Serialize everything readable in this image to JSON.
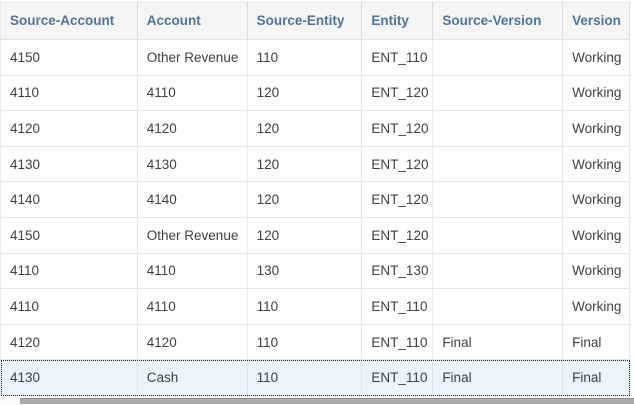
{
  "table": {
    "columns": [
      "Source-Account",
      "Account",
      "Source-Entity",
      "Entity",
      "Source-Version",
      "Version"
    ],
    "rows": [
      {
        "cells": [
          "4150",
          "Other Revenue",
          "110",
          "ENT_110",
          "",
          "Working"
        ],
        "selected": false
      },
      {
        "cells": [
          "4110",
          "4110",
          "120",
          "ENT_120",
          "",
          "Working"
        ],
        "selected": false
      },
      {
        "cells": [
          "4120",
          "4120",
          "120",
          "ENT_120",
          "",
          "Working"
        ],
        "selected": false
      },
      {
        "cells": [
          "4130",
          "4130",
          "120",
          "ENT_120",
          "",
          "Working"
        ],
        "selected": false
      },
      {
        "cells": [
          "4140",
          "4140",
          "120",
          "ENT_120",
          "",
          "Working"
        ],
        "selected": false
      },
      {
        "cells": [
          "4150",
          "Other Revenue",
          "120",
          "ENT_120",
          "",
          "Working"
        ],
        "selected": false
      },
      {
        "cells": [
          "4110",
          "4110",
          "130",
          "ENT_130",
          "",
          "Working"
        ],
        "selected": false
      },
      {
        "cells": [
          "4110",
          "4110",
          "110",
          "ENT_110",
          "",
          "Working"
        ],
        "selected": false
      },
      {
        "cells": [
          "4120",
          "4120",
          "110",
          "ENT_110",
          "Final",
          "Final"
        ],
        "selected": false
      },
      {
        "cells": [
          "4130",
          "Cash",
          "110",
          "ENT_110",
          "Final",
          "Final"
        ],
        "selected": true
      }
    ]
  },
  "colors": {
    "header_text": "#4e7599",
    "header_bg": "#f5f5f5",
    "row_border": "#e6e6e6",
    "body_text": "#404040",
    "selected_row_bg": "#e9f4fb",
    "selected_row_border": "#222222",
    "scrollbar_thumb": "#ababab"
  }
}
